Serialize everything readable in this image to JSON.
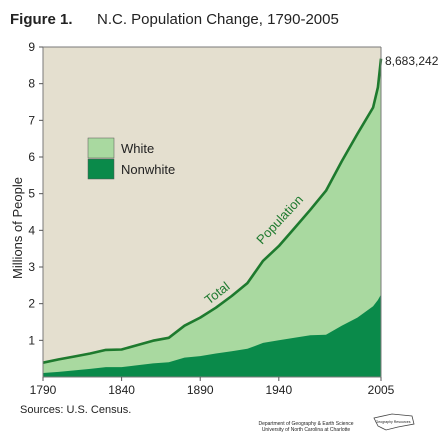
{
  "figure": {
    "label": "Figure 1.",
    "title": "N.C. Population Change, 1790-2005",
    "source": "Sources: U.S. Census.",
    "credit_line1": "Department of Geography & Earth Science",
    "credit_line2": "University of North Carolina at Charlotte",
    "logo_text": "Geography Resources"
  },
  "colors": {
    "background": "#e4dfcf",
    "white_area": "#a9d9a0",
    "nonwhite_area": "#0a8a4a",
    "total_line": "#1e7a2e",
    "frame": "#7a7a7a"
  },
  "chart_data": {
    "type": "area",
    "title": "N.C. Population Change, 1790-2005",
    "xlabel": "",
    "ylabel": "Millions of People",
    "xlim": [
      1790,
      2005
    ],
    "ylim": [
      0,
      9
    ],
    "x_ticks": [
      1790,
      1840,
      1890,
      1940,
      2005
    ],
    "y_ticks": [
      1,
      2,
      3,
      4,
      5,
      6,
      7,
      8,
      9
    ],
    "grid": false,
    "legend": {
      "position": "upper-left",
      "entries": [
        {
          "name": "White",
          "color": "#a9d9a0"
        },
        {
          "name": "Nonwhite",
          "color": "#0a8a4a"
        }
      ]
    },
    "series": [
      {
        "name": "Total",
        "x": [
          1790,
          1800,
          1810,
          1820,
          1830,
          1840,
          1850,
          1860,
          1870,
          1880,
          1890,
          1900,
          1910,
          1920,
          1930,
          1940,
          1950,
          1960,
          1970,
          1980,
          1990,
          2000,
          2003,
          2005
        ],
        "values": [
          0.39,
          0.48,
          0.56,
          0.64,
          0.74,
          0.75,
          0.87,
          0.99,
          1.07,
          1.4,
          1.62,
          1.89,
          2.21,
          2.56,
          3.17,
          3.57,
          4.06,
          4.56,
          5.08,
          5.88,
          6.63,
          7.35,
          7.9,
          8.68
        ]
      },
      {
        "name": "Nonwhite",
        "x": [
          1790,
          1800,
          1810,
          1820,
          1830,
          1840,
          1850,
          1860,
          1870,
          1880,
          1890,
          1900,
          1910,
          1920,
          1930,
          1940,
          1950,
          1960,
          1970,
          1980,
          1990,
          2000,
          2003,
          2005
        ],
        "values": [
          0.11,
          0.14,
          0.18,
          0.22,
          0.27,
          0.27,
          0.32,
          0.37,
          0.4,
          0.53,
          0.57,
          0.64,
          0.7,
          0.77,
          0.93,
          1.0,
          1.07,
          1.14,
          1.15,
          1.4,
          1.62,
          1.93,
          2.1,
          2.25
        ]
      }
    ],
    "annotations": [
      {
        "text": "8,683,242"
      },
      {
        "text": "Total"
      },
      {
        "text": "Population"
      }
    ]
  }
}
